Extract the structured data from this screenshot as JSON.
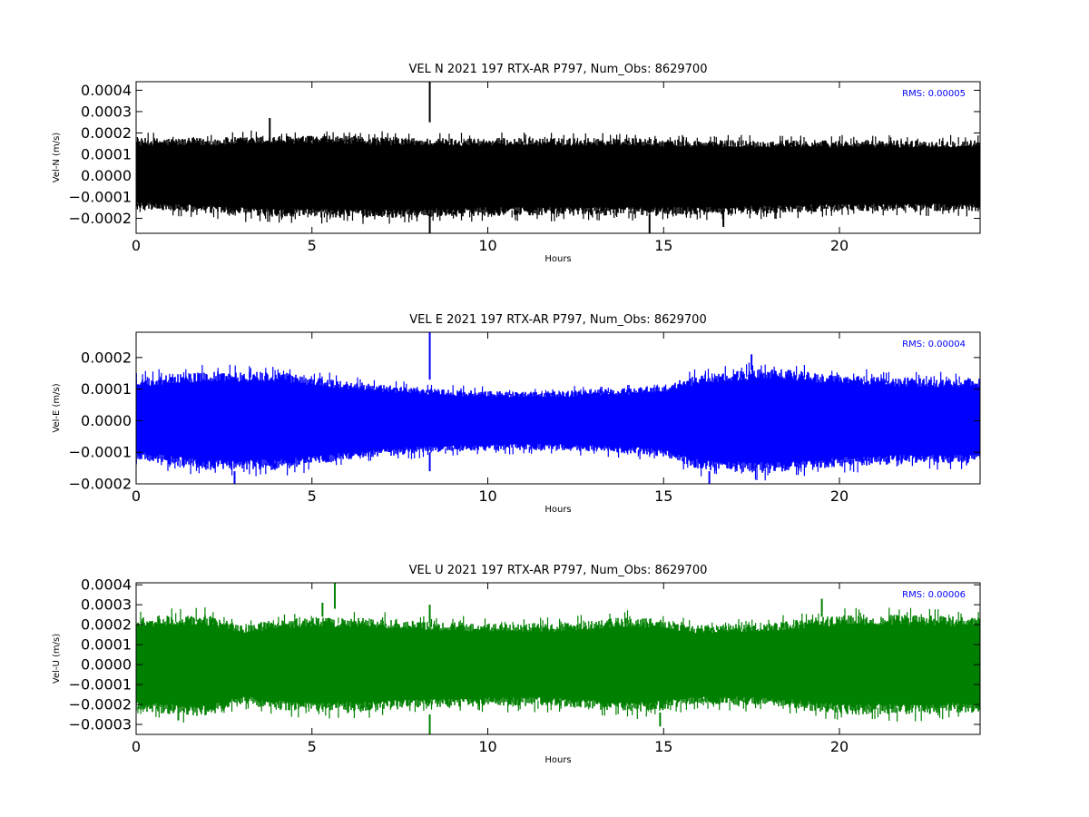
{
  "chart_data": [
    {
      "type": "line",
      "title": "VEL N 2021 197 RTX-AR  P797, Num_Obs: 8629700",
      "xlabel": "Hours",
      "ylabel": "Vel-N (m/s)",
      "xlim": [
        0,
        24
      ],
      "ylim": [
        -0.00027,
        0.00044
      ],
      "x_ticks": [
        0,
        5,
        10,
        15,
        20
      ],
      "x_tick_labels": [
        "0",
        "5",
        "10",
        "15",
        "20"
      ],
      "y_ticks": [
        -0.0002,
        -0.0001,
        0.0,
        0.0001,
        0.0002,
        0.0003,
        0.0004
      ],
      "y_tick_labels": [
        "−0.0002",
        "−0.0001",
        "0.0000",
        "0.0001",
        "0.0002",
        "0.0003",
        "0.0004"
      ],
      "color": "#000000",
      "rms_text": "RMS:  0.00005",
      "grid": false,
      "envelope": {
        "x": [
          0,
          2,
          4,
          6,
          8,
          10,
          12,
          14,
          16,
          18,
          20,
          22,
          24
        ],
        "upper": [
          0.00017,
          0.00017,
          0.00018,
          0.00018,
          0.00017,
          0.00017,
          0.00017,
          0.00017,
          0.00016,
          0.00016,
          0.00016,
          0.00016,
          0.00016
        ],
        "lower": [
          -0.00015,
          -0.00017,
          -0.00019,
          -0.00019,
          -0.00019,
          -0.00018,
          -0.00018,
          -0.00018,
          -0.00018,
          -0.00017,
          -0.00016,
          -0.00016,
          -0.00016
        ]
      },
      "spikes": [
        {
          "x": 3.8,
          "y_min": 0.00016,
          "y_max": 0.00027
        },
        {
          "x": 8.35,
          "y_min": 0.00025,
          "y_max": 0.00044
        },
        {
          "x": 8.35,
          "y_min": -0.00027,
          "y_max": -0.00018
        },
        {
          "x": 14.6,
          "y_min": -0.00027,
          "y_max": -0.00018
        },
        {
          "x": 16.7,
          "y_min": -0.00024,
          "y_max": -0.00016
        }
      ]
    },
    {
      "type": "line",
      "title": "VEL E 2021 197 RTX-AR  P797, Num_Obs: 8629700",
      "xlabel": "Hours",
      "ylabel": "Vel-E (m/s)",
      "xlim": [
        0,
        24
      ],
      "ylim": [
        -0.0002,
        0.00028
      ],
      "x_ticks": [
        0,
        5,
        10,
        15,
        20
      ],
      "x_tick_labels": [
        "0",
        "5",
        "10",
        "15",
        "20"
      ],
      "y_ticks": [
        -0.0002,
        -0.0001,
        0.0,
        0.0001,
        0.0002
      ],
      "y_tick_labels": [
        "−0.0002",
        "−0.0001",
        "0.0000",
        "0.0001",
        "0.0002"
      ],
      "color": "#0000ff",
      "rms_text": "RMS:  0.00004",
      "grid": false,
      "envelope": {
        "x": [
          0,
          2,
          4,
          6,
          8,
          10,
          12,
          14,
          15,
          16,
          18,
          20,
          22,
          24
        ],
        "upper": [
          0.00013,
          0.00015,
          0.00015,
          0.00012,
          0.0001,
          9e-05,
          9e-05,
          0.0001,
          0.00011,
          0.00014,
          0.00016,
          0.00014,
          0.00013,
          0.00013
        ],
        "lower": [
          -0.00012,
          -0.00015,
          -0.00015,
          -0.00012,
          -0.0001,
          -9e-05,
          -9e-05,
          -0.0001,
          -0.00011,
          -0.00015,
          -0.00016,
          -0.00014,
          -0.00013,
          -0.00013
        ]
      },
      "spikes": [
        {
          "x": 2.8,
          "y_min": -0.0002,
          "y_max": -0.00016
        },
        {
          "x": 8.35,
          "y_min": 0.00013,
          "y_max": 0.00028
        },
        {
          "x": 8.35,
          "y_min": -0.00016,
          "y_max": -0.0001
        },
        {
          "x": 16.3,
          "y_min": -0.0002,
          "y_max": -0.00016
        },
        {
          "x": 17.5,
          "y_min": 0.00016,
          "y_max": 0.00021
        }
      ]
    },
    {
      "type": "line",
      "title": "VEL U 2021 197 RTX-AR  P797, Num_Obs: 8629700",
      "xlabel": "Hours",
      "ylabel": "Vel-U (m/s)",
      "xlim": [
        0,
        24
      ],
      "ylim": [
        -0.00035,
        0.00041
      ],
      "x_ticks": [
        0,
        5,
        10,
        15,
        20
      ],
      "x_tick_labels": [
        "0",
        "5",
        "10",
        "15",
        "20"
      ],
      "y_ticks": [
        -0.0003,
        -0.0002,
        -0.0001,
        0.0,
        0.0001,
        0.0002,
        0.0003,
        0.0004
      ],
      "y_tick_labels": [
        "−0.0003",
        "−0.0002",
        "−0.0001",
        "0.0000",
        "0.0001",
        "0.0002",
        "0.0003",
        "0.0004"
      ],
      "color": "#008000",
      "rms_text": "RMS:  0.00006",
      "grid": false,
      "envelope": {
        "x": [
          0,
          2,
          3,
          4,
          6,
          8,
          10,
          12,
          14,
          15,
          16,
          18,
          20,
          22,
          24
        ],
        "upper": [
          0.00023,
          0.00024,
          0.00019,
          0.00022,
          0.00023,
          0.00021,
          0.0002,
          0.0002,
          0.00023,
          0.00022,
          0.00019,
          0.0002,
          0.00024,
          0.00024,
          0.00023
        ],
        "lower": [
          -0.00023,
          -0.00025,
          -0.00019,
          -0.00022,
          -0.00023,
          -0.00021,
          -0.0002,
          -0.0002,
          -0.00023,
          -0.00022,
          -0.00019,
          -0.0002,
          -0.00024,
          -0.00024,
          -0.00023
        ]
      },
      "spikes": [
        {
          "x": 1.2,
          "y_min": -0.00028,
          "y_max": -0.00022
        },
        {
          "x": 5.3,
          "y_min": 0.00024,
          "y_max": 0.00031
        },
        {
          "x": 5.65,
          "y_min": 0.00028,
          "y_max": 0.00041
        },
        {
          "x": 8.35,
          "y_min": 0.00021,
          "y_max": 0.0003
        },
        {
          "x": 8.35,
          "y_min": -0.00035,
          "y_max": -0.00025
        },
        {
          "x": 14.9,
          "y_min": -0.00031,
          "y_max": -0.00024
        },
        {
          "x": 19.5,
          "y_min": 0.00024,
          "y_max": 0.00033
        }
      ]
    }
  ]
}
